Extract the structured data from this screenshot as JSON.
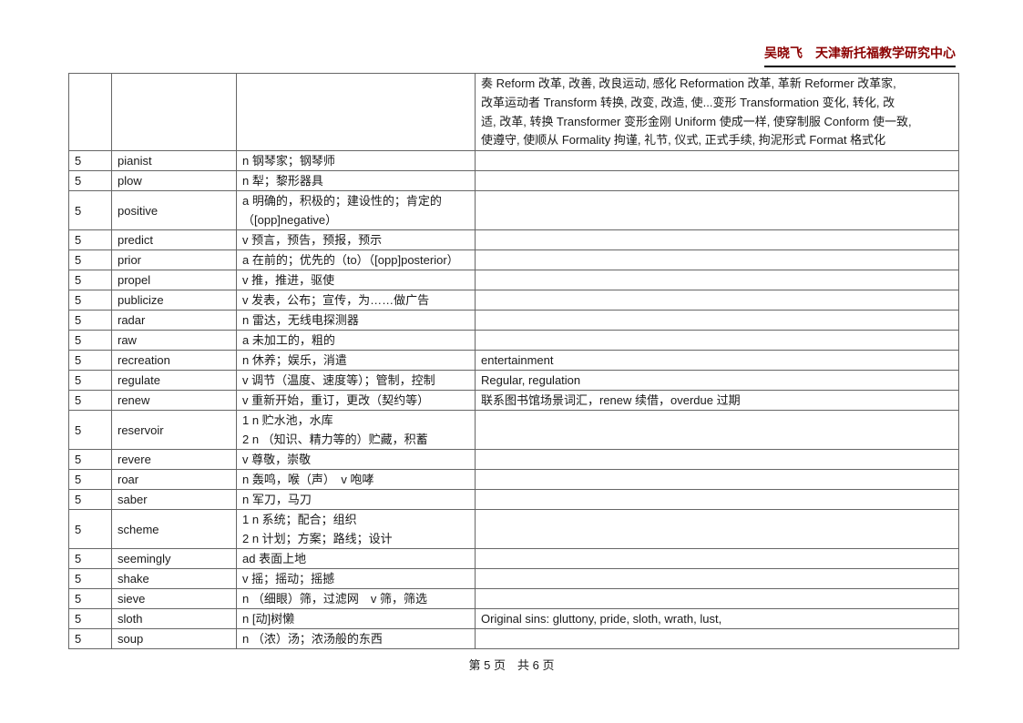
{
  "header": {
    "title": "吴晓飞　天津新托福教学研究中心"
  },
  "table": {
    "continuation_note": "奏 Reform 改革, 改善, 改良运动, 感化 Reformation 改革, 革新 Reformer 改革家,\n改革运动者 Transform 转换, 改变, 改造, 使...变形 Transformation 变化, 转化, 改\n适, 改革, 转换 Transformer 变形金刚 Uniform 使成一样, 使穿制服 Conform 使一致,\n使遵守, 使顺从 Formality 拘谨, 礼节, 仪式, 正式手续, 拘泥形式 Format 格式化",
    "rows": [
      {
        "num": "5",
        "word": "pianist",
        "definition": "n 钢琴家；钢琴师",
        "note": ""
      },
      {
        "num": "5",
        "word": "plow",
        "definition": "n 犁；黎形器具",
        "note": ""
      },
      {
        "num": "5",
        "word": "positive",
        "definition": "a 明确的，积极的；建设性的；肯定的\n（[opp]negative）",
        "note": ""
      },
      {
        "num": "5",
        "word": "predict",
        "definition": "v 预言，预告，预报，预示",
        "note": ""
      },
      {
        "num": "5",
        "word": "prior",
        "definition": "a 在前的；优先的（to）（[opp]posterior）",
        "note": ""
      },
      {
        "num": "5",
        "word": "propel",
        "definition": "v 推，推进，驱使",
        "note": ""
      },
      {
        "num": "5",
        "word": "publicize",
        "definition": "v 发表，公布；宣传，为……做广告",
        "note": ""
      },
      {
        "num": "5",
        "word": "radar",
        "definition": "n 雷达，无线电探测器",
        "note": ""
      },
      {
        "num": "5",
        "word": "raw",
        "definition": "a 未加工的，粗的",
        "note": ""
      },
      {
        "num": "5",
        "word": "recreation",
        "definition": "n 休养；娱乐，消遣",
        "note": "entertainment"
      },
      {
        "num": "5",
        "word": "regulate",
        "definition": "v 调节（温度、速度等）；管制，控制",
        "note": "Regular, regulation"
      },
      {
        "num": "5",
        "word": "renew",
        "definition": "v 重新开始，重订，更改（契约等）",
        "note": "联系图书馆场景词汇，renew 续借，overdue 过期"
      },
      {
        "num": "5",
        "word": "reservoir",
        "definition": "1 n 贮水池，水库\n2 n （知识、精力等的）贮藏，积蓄",
        "note": ""
      },
      {
        "num": "5",
        "word": "revere",
        "definition": "v 尊敬，崇敬",
        "note": ""
      },
      {
        "num": "5",
        "word": "roar",
        "definition": "n 轰鸣，喉（声）　v 咆哮",
        "note": ""
      },
      {
        "num": "5",
        "word": "saber",
        "definition": "n 军刀，马刀",
        "note": ""
      },
      {
        "num": "5",
        "word": "scheme",
        "definition": "1 n 系统；配合；组织\n2 n 计划；方案；路线；设计",
        "note": ""
      },
      {
        "num": "5",
        "word": "seemingly",
        "definition": "ad 表面上地",
        "note": ""
      },
      {
        "num": "5",
        "word": "shake",
        "definition": "v 摇；摇动；摇撼",
        "note": ""
      },
      {
        "num": "5",
        "word": "sieve",
        "definition": "n （细眼）筛，过滤网　v 筛，筛选",
        "note": ""
      },
      {
        "num": "5",
        "word": "sloth",
        "definition": "n [动]树懒",
        "note": "Original sins: gluttony, pride, sloth, wrath, lust,"
      },
      {
        "num": "5",
        "word": "soup",
        "definition": "n （浓）汤；浓汤般的东西",
        "note": ""
      }
    ]
  },
  "footer": {
    "page_info": "第 5 页　共 6 页"
  }
}
